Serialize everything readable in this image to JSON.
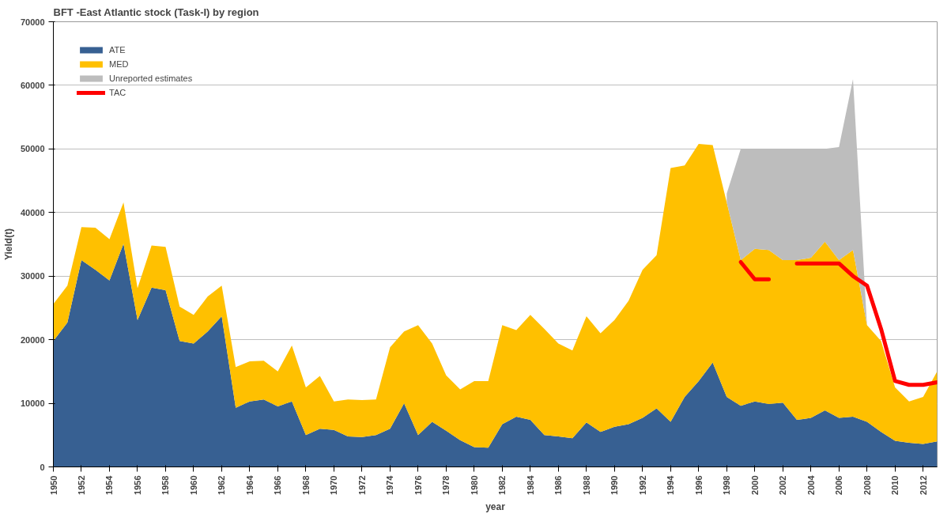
{
  "chart_data": {
    "type": "area",
    "stacked": true,
    "title": "BFT -East Atlantic stock  (Task-I)  by region",
    "xlabel": "year",
    "ylabel": "Yield(t)",
    "x": [
      1950,
      1951,
      1952,
      1953,
      1954,
      1955,
      1956,
      1957,
      1958,
      1959,
      1960,
      1961,
      1962,
      1963,
      1964,
      1965,
      1966,
      1967,
      1968,
      1969,
      1970,
      1971,
      1972,
      1973,
      1974,
      1975,
      1976,
      1977,
      1978,
      1979,
      1980,
      1981,
      1982,
      1983,
      1984,
      1985,
      1986,
      1987,
      1988,
      1989,
      1990,
      1991,
      1992,
      1993,
      1994,
      1995,
      1996,
      1997,
      1998,
      1999,
      2000,
      2001,
      2002,
      2003,
      2004,
      2005,
      2006,
      2007,
      2008,
      2009,
      2010,
      2011,
      2012,
      2013
    ],
    "series": [
      {
        "name": "ATE",
        "color": "#376092",
        "values": [
          19800,
          22700,
          32500,
          31000,
          29300,
          35100,
          23100,
          28200,
          27800,
          19800,
          19400,
          21300,
          23700,
          9300,
          10300,
          10600,
          9500,
          10300,
          5000,
          6000,
          5800,
          4800,
          4700,
          5000,
          6000,
          10000,
          5000,
          7100,
          5700,
          4200,
          3100,
          3000,
          6700,
          7900,
          7400,
          5000,
          4800,
          4500,
          7000,
          5500,
          6300,
          6700,
          7700,
          9200,
          7100,
          11000,
          13500,
          16400,
          11000,
          9600,
          10300,
          9900,
          10100,
          7400,
          7700,
          8900,
          7700,
          7900,
          7100,
          5500,
          4100,
          3800,
          3600,
          4000
        ]
      },
      {
        "name": "MED",
        "color": "#ffc000",
        "values": [
          5800,
          5800,
          5200,
          6600,
          6500,
          6500,
          5000,
          6600,
          6800,
          5400,
          4500,
          5500,
          4800,
          6400,
          6300,
          6100,
          5500,
          8800,
          7500,
          8300,
          4500,
          5800,
          5800,
          5600,
          12800,
          11300,
          17300,
          12300,
          8700,
          8000,
          10400,
          10500,
          15600,
          13600,
          16500,
          16700,
          14600,
          13800,
          16700,
          15500,
          16800,
          19400,
          23300,
          24100,
          39900,
          36400,
          37300,
          34200,
          30600,
          22900,
          24000,
          24200,
          22400,
          25100,
          25200,
          26500,
          24800,
          26200,
          15200,
          14300,
          8400,
          6500,
          7400,
          11000
        ]
      },
      {
        "name": "Unreported estimates",
        "color": "#bdbdbd",
        "values": [
          null,
          null,
          null,
          null,
          null,
          null,
          null,
          null,
          null,
          null,
          null,
          null,
          null,
          null,
          null,
          null,
          null,
          null,
          null,
          null,
          null,
          null,
          null,
          null,
          null,
          null,
          null,
          null,
          null,
          null,
          null,
          null,
          null,
          null,
          null,
          null,
          null,
          null,
          null,
          null,
          null,
          null,
          null,
          null,
          null,
          null,
          null,
          null,
          1400,
          17500,
          15700,
          15900,
          17500,
          17500,
          17100,
          14600,
          17800,
          26900,
          0,
          null,
          null,
          null,
          null,
          null
        ]
      },
      {
        "name": "TAC",
        "type": "line",
        "color": "#ff0000",
        "values": [
          null,
          null,
          null,
          null,
          null,
          null,
          null,
          null,
          null,
          null,
          null,
          null,
          null,
          null,
          null,
          null,
          null,
          null,
          null,
          null,
          null,
          null,
          null,
          null,
          null,
          null,
          null,
          null,
          null,
          null,
          null,
          null,
          null,
          null,
          null,
          null,
          null,
          null,
          null,
          null,
          null,
          null,
          null,
          null,
          null,
          null,
          null,
          null,
          null,
          32200,
          29500,
          29500,
          null,
          32000,
          32000,
          32000,
          32000,
          30000,
          28500,
          21700,
          13500,
          12900,
          12900,
          13300
        ]
      }
    ],
    "xlim": [
      1950,
      2013
    ],
    "xticks": [
      1950,
      1952,
      1954,
      1956,
      1958,
      1960,
      1962,
      1964,
      1966,
      1968,
      1970,
      1972,
      1974,
      1976,
      1978,
      1980,
      1982,
      1984,
      1986,
      1988,
      1990,
      1992,
      1994,
      1996,
      1998,
      2000,
      2002,
      2004,
      2006,
      2008,
      2010,
      2012
    ],
    "ylim": [
      0,
      70000
    ],
    "yticks": [
      0,
      10000,
      20000,
      30000,
      40000,
      50000,
      60000,
      70000
    ],
    "grid": "y",
    "legend": "top left"
  }
}
